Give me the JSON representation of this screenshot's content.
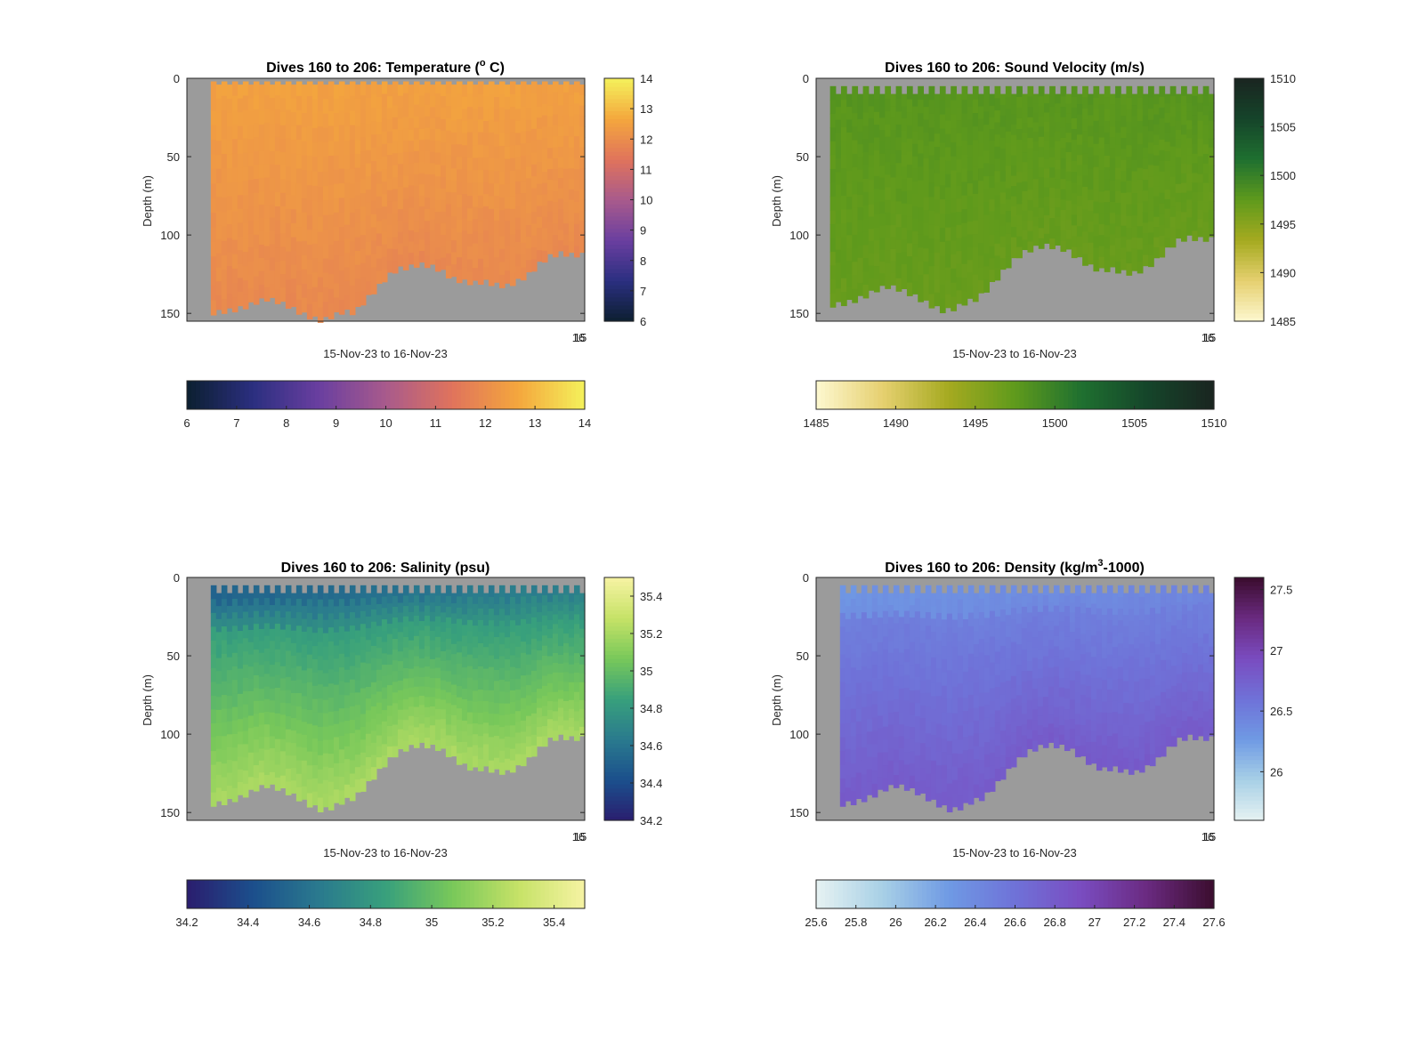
{
  "figure": {
    "background": "#ffffff",
    "nodata_color": "#9b9b9b"
  },
  "chart_data": [
    {
      "type": "heatmap",
      "title": "Dives 160 to 206: Temperature (° C)",
      "title_parts": [
        "Dives 160 to 206: Temperature (",
        "o",
        " C)"
      ],
      "xlabel": "15-Nov-23 to 16-Nov-23",
      "ylabel": "Depth (m)",
      "xtick_labels": [
        "16",
        "15"
      ],
      "y_ticks": [
        0,
        50,
        100,
        150
      ],
      "ylim": [
        0,
        155
      ],
      "y_reversed": true,
      "dives": [
        160,
        206
      ],
      "data_start_fraction": 0.06,
      "clim": [
        6,
        14
      ],
      "colorbar_ticks": [
        6,
        7,
        8,
        9,
        10,
        11,
        12,
        13,
        14
      ],
      "colormap": [
        "#0c1f30",
        "#2b2f80",
        "#6a3fa0",
        "#a85a8c",
        "#e0735c",
        "#f4a73d",
        "#f4f15b"
      ],
      "surface_value": 12.5,
      "bottom_value": 11.9,
      "surface_gap_depth": [
        0,
        4
      ],
      "bottom_depths": [
        148,
        147,
        146,
        144,
        141,
        139,
        141,
        144,
        148,
        151,
        153,
        150,
        147,
        148,
        140,
        133,
        125,
        120,
        119,
        117,
        118,
        121,
        126,
        128,
        129,
        128,
        130,
        131,
        128,
        124,
        117,
        112,
        110,
        111,
        111
      ]
    },
    {
      "type": "heatmap",
      "title": "Dives 160 to 206: Sound Velocity (m/s)",
      "xlabel": "15-Nov-23 to 16-Nov-23",
      "ylabel": "Depth (m)",
      "xtick_labels": [
        "16",
        "15"
      ],
      "y_ticks": [
        0,
        50,
        100,
        150
      ],
      "ylim": [
        0,
        155
      ],
      "y_reversed": true,
      "dives": [
        160,
        206
      ],
      "data_start_fraction": 0.035,
      "clim": [
        1485,
        1510
      ],
      "colorbar_ticks": [
        1485,
        1490,
        1495,
        1500,
        1505,
        1510
      ],
      "colormap": [
        "#fdf8d0",
        "#e6d070",
        "#a5aa20",
        "#5f9a1c",
        "#1f7030",
        "#15452a",
        "#1a2520"
      ],
      "surface_value": 1498,
      "bottom_value": 1497,
      "surface_gap_depth": [
        0,
        10
      ],
      "bottom_depths": [
        143,
        142,
        140,
        137,
        133,
        131,
        133,
        136,
        140,
        144,
        147,
        145,
        141,
        139,
        132,
        124,
        116,
        110,
        107,
        105,
        106,
        108,
        113,
        118,
        121,
        120,
        122,
        123,
        120,
        115,
        108,
        102,
        100,
        101,
        101
      ]
    },
    {
      "type": "heatmap",
      "title": "Dives 160 to 206: Salinity (psu)",
      "xlabel": "15-Nov-23 to 16-Nov-23",
      "ylabel": "Depth (m)",
      "xtick_labels": [
        "16",
        "15"
      ],
      "y_ticks": [
        0,
        50,
        100,
        150
      ],
      "ylim": [
        0,
        155
      ],
      "y_reversed": true,
      "dives": [
        160,
        206
      ],
      "data_start_fraction": 0.06,
      "clim": [
        34.2,
        35.5
      ],
      "colorbar_ticks": [
        34.2,
        34.4,
        34.6,
        34.8,
        35,
        35.2,
        35.4
      ],
      "colormap": [
        "#2a1d6e",
        "#1b4f8c",
        "#2a7a8e",
        "#38a07c",
        "#78c85a",
        "#c6e267",
        "#f6f3a3"
      ],
      "surface_value": 34.75,
      "bottom_value": 35.2,
      "surface_gap_depth": [
        0,
        10
      ],
      "bottom_depths": [
        143,
        142,
        140,
        137,
        133,
        131,
        133,
        136,
        140,
        144,
        147,
        145,
        141,
        139,
        132,
        124,
        116,
        110,
        107,
        105,
        106,
        108,
        113,
        118,
        121,
        120,
        122,
        123,
        120,
        115,
        108,
        102,
        100,
        101,
        101
      ]
    },
    {
      "type": "heatmap",
      "title": "Dives 160 to 206: Density (kg/m",
      "title_parts": [
        "Dives 160 to 206: Density (kg/m",
        "3",
        "-1000)"
      ],
      "xlabel": "15-Nov-23 to 16-Nov-23",
      "ylabel": "Depth (m)",
      "xtick_labels": [
        "16",
        "15"
      ],
      "y_ticks": [
        0,
        50,
        100,
        150
      ],
      "ylim": [
        0,
        155
      ],
      "y_reversed": true,
      "dives": [
        160,
        206
      ],
      "data_start_fraction": 0.06,
      "clim": [
        25.6,
        27.6
      ],
      "colorbar_ticks": [
        25.6,
        25.8,
        26,
        26.2,
        26.4,
        26.6,
        26.8,
        27,
        27.2,
        27.4,
        27.6
      ],
      "colorbar_side_ticks": [
        26,
        26.5,
        27,
        27.5
      ],
      "colormap": [
        "#e6f2f2",
        "#a8d0e6",
        "#6f9ae4",
        "#6f72d8",
        "#7a4cc0",
        "#6a2a80",
        "#3b0d2e"
      ],
      "surface_value": 26.45,
      "bottom_value": 26.8,
      "surface_gap_depth": [
        0,
        10
      ],
      "bottom_depths": [
        143,
        142,
        140,
        137,
        133,
        131,
        133,
        136,
        140,
        144,
        147,
        145,
        141,
        139,
        132,
        124,
        116,
        110,
        107,
        105,
        106,
        108,
        113,
        118,
        121,
        120,
        122,
        123,
        120,
        115,
        108,
        102,
        100,
        101,
        101
      ]
    }
  ]
}
